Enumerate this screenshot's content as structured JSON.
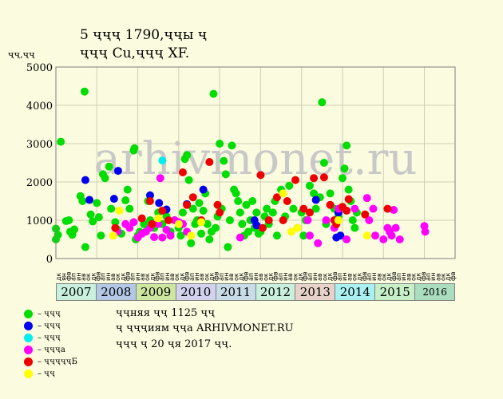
{
  "title_line1": "5 ҷҷҷ 1790,ҷҷы ҷ",
  "title_line2": "ҷҷҷ Cu,ҷҷҷ XF.",
  "watermark": "arhivmonet.ru",
  "note1": "ҷҷняя ҷҷ 1125 ҷҷ",
  "note2": "ҷ ҷҷҷиям ҷҷа ARHIVMONET.RU",
  "note3": "ҷҷҷ ҷ 20 ҷя 2017 ҷҷ.",
  "chart_data": {
    "type": "scatter",
    "title": "5 ҷҷҷ 1790,ҷҷы ҷ ҷҷҷ Cu,ҷҷҷ XF.",
    "ylabel": "ҷҷ,ҷҷ",
    "ylim": [
      0,
      5000
    ],
    "yticks": [
      0,
      1000,
      2000,
      3000,
      4000,
      5000
    ],
    "grid": true,
    "legend_position": "bottom-left",
    "months": [
      "дк",
      "ян",
      "фв",
      "мр",
      "ап",
      "мй",
      "ин",
      "ил",
      "ав",
      "сн",
      "ок",
      "нб"
    ],
    "x_tick_labels": [
      "дк",
      "ян",
      "фв",
      "ап",
      "ин",
      "ав",
      "ок",
      "дк",
      "фв",
      "ап",
      "ин",
      "ав",
      "ок",
      "дк",
      "фв",
      "ап",
      "ин",
      "ав",
      "ок",
      "дк",
      "фв",
      "ап",
      "ин",
      "ав",
      "ок",
      "дк",
      "фв",
      "ап",
      "ин",
      "ав",
      "ок",
      "дк",
      "фв",
      "ап",
      "ин",
      "ав",
      "ок",
      "дк",
      "фв",
      "ап",
      "ин",
      "ав",
      "ок",
      "дк",
      "фв",
      "ап",
      "ин",
      "ав",
      "ок",
      "дк",
      "фв",
      "ап",
      "ин",
      "ав",
      "ок",
      "дк",
      "фв",
      "ап",
      "ин",
      "ав",
      "ок",
      "дк",
      "фв",
      "ап",
      "ин",
      "ав",
      "ок",
      "дк",
      "фв",
      "ап",
      "ин",
      "ав",
      "ок",
      "дк",
      "фв",
      "ап",
      "ин",
      "ав",
      "ок",
      "дк",
      "фв"
    ],
    "years": [
      {
        "label": "2007",
        "color": "#c8f0dc"
      },
      {
        "label": "2008",
        "color": "#b4c8e6"
      },
      {
        "label": "2009",
        "color": "#cde6a0"
      },
      {
        "label": "2010",
        "color": "#d2d2ee"
      },
      {
        "label": "2011",
        "color": "#c8dce8"
      },
      {
        "label": "2012",
        "color": "#c8f0dc"
      },
      {
        "label": "2013",
        "color": "#e6d2c8"
      },
      {
        "label": "2014",
        "color": "#aaf0f0"
      },
      {
        "label": "2015",
        "color": "#c8f0c8"
      },
      {
        "label": "2016",
        "color": "#aadcbe"
      }
    ],
    "series": [
      {
        "name": "ҷҷҷ",
        "color": "#00dd00",
        "points": [
          [
            2007.0,
            780
          ],
          [
            2007.0,
            500
          ],
          [
            2007.05,
            620
          ],
          [
            2007.12,
            3050
          ],
          [
            2007.25,
            980
          ],
          [
            2007.32,
            1000
          ],
          [
            2007.35,
            700
          ],
          [
            2007.4,
            620
          ],
          [
            2007.45,
            760
          ],
          [
            2007.6,
            1630
          ],
          [
            2007.65,
            1500
          ],
          [
            2007.7,
            4360
          ],
          [
            2007.72,
            300
          ],
          [
            2007.85,
            1150
          ],
          [
            2007.9,
            970
          ],
          [
            2008.0,
            1450
          ],
          [
            2008.05,
            1080
          ],
          [
            2008.1,
            600
          ],
          [
            2008.15,
            2200
          ],
          [
            2008.2,
            2100
          ],
          [
            2008.3,
            2400
          ],
          [
            2008.35,
            1300
          ],
          [
            2008.45,
            950
          ],
          [
            2008.5,
            760
          ],
          [
            2008.6,
            650
          ],
          [
            2008.7,
            1520
          ],
          [
            2008.75,
            1800
          ],
          [
            2008.8,
            1300
          ],
          [
            2008.9,
            2820
          ],
          [
            2008.92,
            2880
          ],
          [
            2008.95,
            500
          ],
          [
            2009.0,
            600
          ],
          [
            2009.05,
            700
          ],
          [
            2009.15,
            900
          ],
          [
            2009.25,
            1500
          ],
          [
            2009.3,
            1000
          ],
          [
            2009.4,
            800
          ],
          [
            2009.5,
            1200
          ],
          [
            2009.6,
            900
          ],
          [
            2009.7,
            1100
          ],
          [
            2009.8,
            700
          ],
          [
            2009.9,
            1000
          ],
          [
            2010.0,
            800
          ],
          [
            2010.05,
            600
          ],
          [
            2010.1,
            1200
          ],
          [
            2010.15,
            2600
          ],
          [
            2010.2,
            2700
          ],
          [
            2010.25,
            2050
          ],
          [
            2010.3,
            400
          ],
          [
            2010.35,
            1300
          ],
          [
            2010.4,
            900
          ],
          [
            2010.45,
            1000
          ],
          [
            2010.5,
            1450
          ],
          [
            2010.55,
            650
          ],
          [
            2010.6,
            1250
          ],
          [
            2010.65,
            1700
          ],
          [
            2010.7,
            900
          ],
          [
            2010.75,
            500
          ],
          [
            2010.8,
            700
          ],
          [
            2010.85,
            4300
          ],
          [
            2010.9,
            800
          ],
          [
            2010.95,
            1100
          ],
          [
            2011.0,
            3000
          ],
          [
            2011.05,
            1300
          ],
          [
            2011.1,
            2550
          ],
          [
            2011.15,
            2200
          ],
          [
            2011.2,
            300
          ],
          [
            2011.25,
            1000
          ],
          [
            2011.3,
            2950
          ],
          [
            2011.35,
            1800
          ],
          [
            2011.4,
            1700
          ],
          [
            2011.45,
            1500
          ],
          [
            2011.5,
            1200
          ],
          [
            2011.55,
            900
          ],
          [
            2011.6,
            600
          ],
          [
            2011.65,
            1400
          ],
          [
            2011.7,
            700
          ],
          [
            2011.75,
            1000
          ],
          [
            2011.8,
            1500
          ],
          [
            2011.85,
            800
          ],
          [
            2011.9,
            1200
          ],
          [
            2011.95,
            650
          ],
          [
            2012.0,
            700
          ],
          [
            2012.1,
            1100
          ],
          [
            2012.15,
            1300
          ],
          [
            2012.2,
            900
          ],
          [
            2012.3,
            1200
          ],
          [
            2012.35,
            1500
          ],
          [
            2012.4,
            600
          ],
          [
            2012.5,
            1800
          ],
          [
            2012.6,
            1100
          ],
          [
            2012.7,
            1900
          ],
          [
            2012.8,
            1300
          ],
          [
            2012.9,
            800
          ],
          [
            2013.0,
            1200
          ],
          [
            2013.05,
            600
          ],
          [
            2013.1,
            1000
          ],
          [
            2013.2,
            1900
          ],
          [
            2013.3,
            1700
          ],
          [
            2013.35,
            1300
          ],
          [
            2013.45,
            1600
          ],
          [
            2013.5,
            4080
          ],
          [
            2013.55,
            2500
          ],
          [
            2013.6,
            900
          ],
          [
            2013.7,
            1700
          ],
          [
            2013.8,
            1300
          ],
          [
            2013.9,
            1100
          ],
          [
            2014.0,
            2100
          ],
          [
            2014.05,
            2350
          ],
          [
            2014.1,
            2950
          ],
          [
            2014.15,
            1800
          ],
          [
            2014.2,
            1500
          ],
          [
            2014.25,
            1000
          ],
          [
            2014.3,
            800
          ],
          [
            2014.35,
            1200
          ]
        ]
      },
      {
        "name": "ҷҷҷ",
        "color": "#0000ee",
        "points": [
          [
            2007.72,
            2050
          ],
          [
            2007.82,
            1530
          ],
          [
            2008.42,
            1560
          ],
          [
            2008.52,
            2290
          ],
          [
            2009.3,
            1650
          ],
          [
            2009.52,
            1450
          ],
          [
            2009.7,
            1280
          ],
          [
            2010.2,
            1420
          ],
          [
            2010.6,
            1800
          ],
          [
            2011.85,
            1000
          ],
          [
            2011.9,
            870
          ],
          [
            2013.35,
            1530
          ],
          [
            2013.85,
            550
          ],
          [
            2013.9,
            1200
          ],
          [
            2013.95,
            600
          ]
        ]
      },
      {
        "name": "ҷҷҷ",
        "color": "#00eeee",
        "points": [
          [
            2009.6,
            2560
          ]
        ]
      },
      {
        "name": "ҷҷҷа",
        "color": "#ff00ff",
        "points": [
          [
            2008.5,
            700
          ],
          [
            2008.7,
            900
          ],
          [
            2008.8,
            800
          ],
          [
            2008.9,
            950
          ],
          [
            2009.0,
            550
          ],
          [
            2009.1,
            650
          ],
          [
            2009.2,
            700
          ],
          [
            2009.3,
            800
          ],
          [
            2009.4,
            560
          ],
          [
            2009.5,
            900
          ],
          [
            2009.55,
            2100
          ],
          [
            2009.6,
            550
          ],
          [
            2009.7,
            750
          ],
          [
            2009.8,
            600
          ],
          [
            2009.9,
            1000
          ],
          [
            2010.0,
            950
          ],
          [
            2010.1,
            900
          ],
          [
            2010.2,
            700
          ],
          [
            2011.5,
            550
          ],
          [
            2013.15,
            1000
          ],
          [
            2013.2,
            600
          ],
          [
            2013.4,
            400
          ],
          [
            2013.6,
            1000
          ],
          [
            2013.8,
            800
          ],
          [
            2013.9,
            1300
          ],
          [
            2014.1,
            500
          ],
          [
            2014.3,
            1300
          ],
          [
            2014.6,
            1580
          ],
          [
            2014.65,
            1000
          ],
          [
            2014.75,
            1300
          ],
          [
            2014.8,
            600
          ],
          [
            2015.0,
            500
          ],
          [
            2015.1,
            800
          ],
          [
            2015.15,
            700
          ],
          [
            2015.2,
            600
          ],
          [
            2015.25,
            1270
          ],
          [
            2015.3,
            800
          ],
          [
            2015.4,
            500
          ],
          [
            2016.0,
            850
          ],
          [
            2016.02,
            700
          ]
        ]
      },
      {
        "name": "ҷҷҷҷҷБ",
        "color": "#ee0000",
        "points": [
          [
            2008.45,
            800
          ],
          [
            2009.1,
            1050
          ],
          [
            2009.3,
            1500
          ],
          [
            2009.35,
            900
          ],
          [
            2009.6,
            1250
          ],
          [
            2009.75,
            1000
          ],
          [
            2010.1,
            2250
          ],
          [
            2010.2,
            1400
          ],
          [
            2010.35,
            1600
          ],
          [
            2010.55,
            1000
          ],
          [
            2010.75,
            2520
          ],
          [
            2010.95,
            1400
          ],
          [
            2011.0,
            1200
          ],
          [
            2012.0,
            2180
          ],
          [
            2012.05,
            800
          ],
          [
            2012.2,
            1000
          ],
          [
            2012.4,
            1600
          ],
          [
            2012.55,
            1000
          ],
          [
            2012.65,
            1500
          ],
          [
            2012.85,
            2050
          ],
          [
            2013.05,
            1300
          ],
          [
            2013.2,
            1200
          ],
          [
            2013.3,
            2100
          ],
          [
            2013.55,
            2120
          ],
          [
            2013.7,
            1400
          ],
          [
            2013.8,
            1000
          ],
          [
            2013.85,
            900
          ],
          [
            2014.0,
            1350
          ],
          [
            2014.1,
            1250
          ],
          [
            2014.15,
            1550
          ],
          [
            2014.55,
            1150
          ],
          [
            2015.1,
            1300
          ]
        ]
      },
      {
        "name": "ҷҷ",
        "color": "#ffff00",
        "points": [
          [
            2008.4,
            600
          ],
          [
            2008.55,
            1250
          ],
          [
            2009.5,
            1050
          ],
          [
            2010.0,
            900
          ],
          [
            2010.3,
            600
          ],
          [
            2010.55,
            950
          ],
          [
            2012.55,
            1700
          ],
          [
            2012.75,
            700
          ],
          [
            2012.9,
            800
          ],
          [
            2013.9,
            1000
          ],
          [
            2014.6,
            600
          ]
        ]
      }
    ]
  }
}
